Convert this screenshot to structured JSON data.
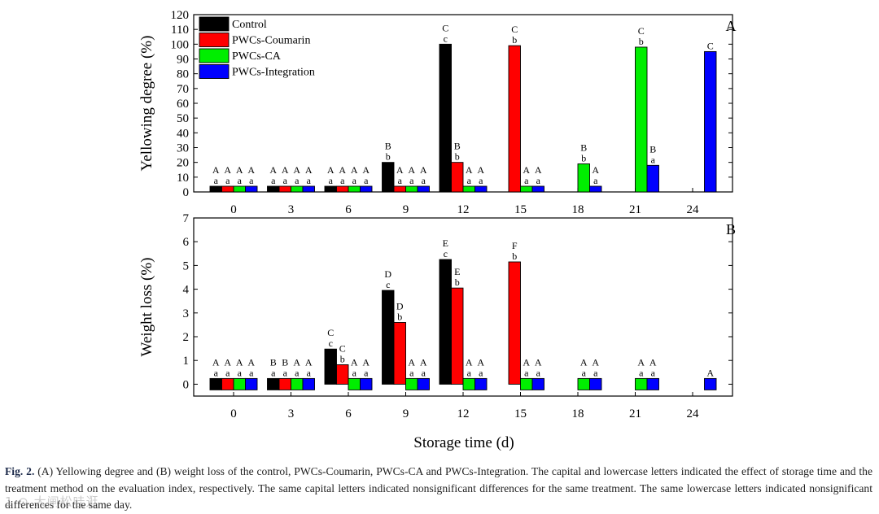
{
  "chart_data": [
    {
      "type": "bar",
      "panel_letter": "A",
      "ylabel": "Yellowing degree (%)",
      "xlabel": "",
      "categories": [
        "0",
        "3",
        "6",
        "9",
        "12",
        "15",
        "18",
        "21",
        "24"
      ],
      "ylim": [
        0,
        120
      ],
      "yticks": [
        "0",
        "10",
        "20",
        "30",
        "40",
        "50",
        "60",
        "70",
        "80",
        "90",
        "100",
        "110",
        "120"
      ],
      "legend_position": "top-left",
      "series": [
        {
          "name": "Control",
          "color": "#000000",
          "values": [
            1,
            1,
            1,
            20,
            100,
            null,
            null,
            null,
            null
          ],
          "upper": [
            "A",
            "A",
            "A",
            "B",
            "C",
            "",
            "",
            "",
            ""
          ],
          "lower": [
            "a",
            "a",
            "a",
            "b",
            "c",
            "",
            "",
            "",
            ""
          ]
        },
        {
          "name": "PWCs-Coumarin",
          "color": "#ff0000",
          "values": [
            1,
            1,
            1,
            1,
            20,
            99,
            null,
            null,
            null
          ],
          "upper": [
            "A",
            "A",
            "A",
            "A",
            "B",
            "C",
            "",
            "",
            ""
          ],
          "lower": [
            "a",
            "a",
            "a",
            "a",
            "b",
            "b",
            "",
            "",
            ""
          ]
        },
        {
          "name": "PWCs-CA",
          "color": "#00ee00",
          "values": [
            1,
            1,
            1,
            1,
            1,
            1,
            19,
            98,
            null
          ],
          "upper": [
            "A",
            "A",
            "A",
            "A",
            "A",
            "A",
            "B",
            "C",
            ""
          ],
          "lower": [
            "a",
            "a",
            "a",
            "a",
            "a",
            "a",
            "b",
            "b",
            ""
          ]
        },
        {
          "name": "PWCs-Integration",
          "color": "#0000ff",
          "values": [
            1,
            1,
            1,
            1,
            1,
            1,
            1,
            18,
            95
          ],
          "upper": [
            "A",
            "A",
            "A",
            "A",
            "A",
            "A",
            "A",
            "B",
            "C"
          ],
          "lower": [
            "a",
            "a",
            "a",
            "a",
            "a",
            "a",
            "a",
            "a",
            ""
          ]
        }
      ]
    },
    {
      "type": "bar",
      "panel_letter": "B",
      "ylabel": "Weight loss (%)",
      "xlabel": "Storage time (d)",
      "categories": [
        "0",
        "3",
        "6",
        "9",
        "12",
        "15",
        "18",
        "21",
        "24"
      ],
      "ylim": [
        -0.5,
        7
      ],
      "yticks": [
        "0",
        "1",
        "2",
        "3",
        "4",
        "5",
        "6",
        "7"
      ],
      "series": [
        {
          "name": "Control",
          "color": "#000000",
          "values": [
            0,
            0,
            1.48,
            3.95,
            5.25,
            null,
            null,
            null,
            null
          ],
          "upper": [
            "A",
            "B",
            "C",
            "D",
            "E",
            "",
            "",
            "",
            ""
          ],
          "lower": [
            "a",
            "a",
            "c",
            "c",
            "c",
            "",
            "",
            "",
            ""
          ]
        },
        {
          "name": "PWCs-Coumarin",
          "color": "#ff0000",
          "values": [
            0,
            0,
            0.82,
            2.6,
            4.05,
            5.15,
            null,
            null,
            null
          ],
          "upper": [
            "A",
            "B",
            "C",
            "D",
            "E",
            "F",
            "",
            "",
            ""
          ],
          "lower": [
            "a",
            "a",
            "b",
            "b",
            "b",
            "b",
            "",
            "",
            ""
          ]
        },
        {
          "name": "PWCs-CA",
          "color": "#00ee00",
          "values": [
            0,
            0,
            0,
            0,
            0,
            0,
            0,
            0,
            null
          ],
          "upper": [
            "A",
            "A",
            "A",
            "A",
            "A",
            "A",
            "A",
            "A",
            ""
          ],
          "lower": [
            "a",
            "a",
            "a",
            "a",
            "a",
            "a",
            "a",
            "a",
            ""
          ]
        },
        {
          "name": "PWCs-Integration",
          "color": "#0000ff",
          "values": [
            0,
            0,
            0,
            0,
            0,
            0,
            0,
            0,
            0
          ],
          "upper": [
            "A",
            "A",
            "A",
            "A",
            "A",
            "A",
            "A",
            "A",
            "A"
          ],
          "lower": [
            "a",
            "a",
            "a",
            "a",
            "a",
            "a",
            "a",
            "a",
            ""
          ]
        }
      ]
    }
  ],
  "caption": {
    "label": "Fig. 2.",
    "text": "(A) Yellowing degree and (B) weight loss of the control, PWCs-Coumarin, PWCs-CA and PWCs-Integration. The capital and lowercase letters indicated the effect of storage time and the treatment method on the evaluation index, respectively. The same capital letters indicated nonsignificant differences for the same treatment. The same lowercase letters indicated nonsignificant differences for the same day."
  },
  "watermark": "1 ⊙ 大闸松哇逛"
}
